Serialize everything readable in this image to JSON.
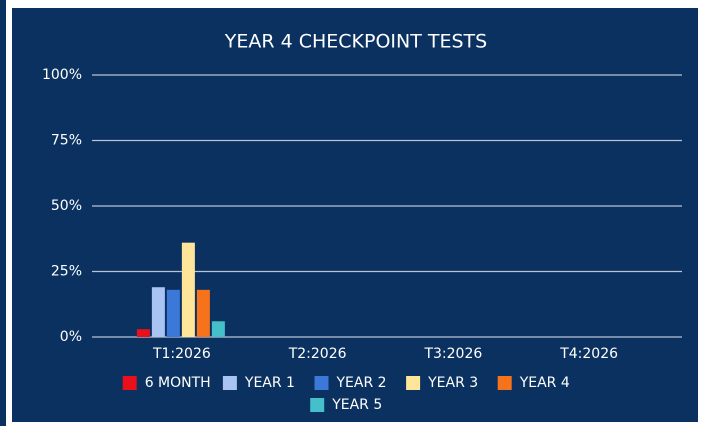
{
  "chart_data": {
    "type": "bar",
    "title": "YEAR 4 CHECKPOINT TESTS",
    "categories": [
      "T1:2026",
      "T2:2026",
      "T3:2026",
      "T4:2026"
    ],
    "series": [
      {
        "name": "6 MONTH",
        "color": "#e8101a",
        "values": [
          3,
          0,
          0,
          0
        ]
      },
      {
        "name": "YEAR 1",
        "color": "#a9c4f2",
        "values": [
          19,
          0,
          0,
          0
        ]
      },
      {
        "name": "YEAR 2",
        "color": "#3c78d8",
        "values": [
          18,
          0,
          0,
          0
        ]
      },
      {
        "name": "YEAR 3",
        "color": "#ffe599",
        "values": [
          36,
          0,
          0,
          0
        ]
      },
      {
        "name": "YEAR 4",
        "color": "#f6731b",
        "values": [
          18,
          0,
          0,
          0
        ]
      },
      {
        "name": "YEAR 5",
        "color": "#45bfc9",
        "values": [
          6,
          0,
          0,
          0
        ]
      }
    ],
    "ylim": [
      0,
      100
    ],
    "yticks": [
      {
        "value": 0,
        "label": "0%"
      },
      {
        "value": 25,
        "label": "25%"
      },
      {
        "value": 50,
        "label": "50%"
      },
      {
        "value": 75,
        "label": "75%"
      },
      {
        "value": 100,
        "label": "100%"
      }
    ],
    "grid": true,
    "legend": "bottom"
  }
}
